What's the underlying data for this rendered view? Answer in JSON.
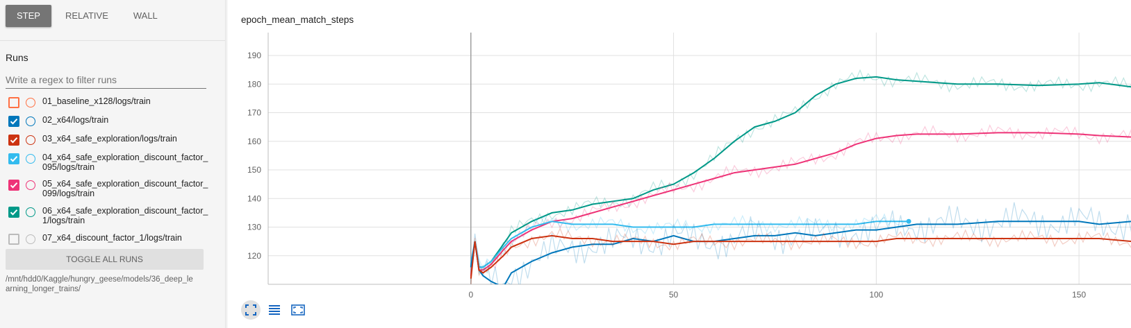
{
  "xaxis_buttons": [
    {
      "label": "STEP",
      "active": true
    },
    {
      "label": "RELATIVE",
      "active": false
    },
    {
      "label": "WALL",
      "active": false
    }
  ],
  "runs_title": "Runs",
  "filter_placeholder": "Write a regex to filter runs",
  "runs": [
    {
      "label": "01_baseline_x128/logs/train",
      "checked": false,
      "color": "#ff7043"
    },
    {
      "label": "02_x64/logs/train",
      "checked": true,
      "color": "#0077bb"
    },
    {
      "label": "03_x64_safe_exploration/logs/train",
      "checked": true,
      "color": "#cc3311"
    },
    {
      "label": "04_x64_safe_exploration_discount_factor_095/logs/train",
      "checked": true,
      "color": "#33bbee"
    },
    {
      "label": "05_x64_safe_exploration_discount_factor_099/logs/train",
      "checked": true,
      "color": "#ee3377"
    },
    {
      "label": "06_x64_safe_exploration_discount_factor_1/logs/train",
      "checked": true,
      "color": "#009988"
    },
    {
      "label": "07_x64_discount_factor_1/logs/train",
      "checked": false,
      "color": "#bbbbbb"
    }
  ],
  "toggle_all_label": "TOGGLE ALL RUNS",
  "logdir": "/mnt/hdd0/Kaggle/hungry_geese/models/36_deep_learning_longer_trains/",
  "card_title": "epoch_mean_match_steps",
  "icons": [
    "fit-domain-icon",
    "data-table-icon",
    "fullscreen-icon"
  ],
  "chart_data": {
    "type": "line",
    "title": "epoch_mean_match_steps",
    "xlabel": "",
    "ylabel": "",
    "xlim": [
      -50,
      163
    ],
    "ylim": [
      110,
      198
    ],
    "xticks": [
      0,
      50,
      100,
      150
    ],
    "yticks": [
      120,
      130,
      140,
      150,
      160,
      170,
      180,
      190
    ],
    "grid": true,
    "series": [
      {
        "color": "#009988",
        "x": [
          0,
          1,
          2,
          3,
          5,
          8,
          10,
          15,
          20,
          25,
          30,
          35,
          40,
          45,
          50,
          55,
          60,
          65,
          70,
          75,
          80,
          85,
          90,
          95,
          100,
          105,
          110,
          115,
          120,
          130,
          140,
          150,
          155,
          163
        ],
        "y": [
          116,
          125,
          116,
          116,
          118,
          124,
          128,
          132,
          135,
          136,
          138,
          139,
          140,
          143,
          145,
          149,
          154,
          160,
          165,
          167,
          170,
          176,
          180,
          182,
          182.5,
          181.5,
          181,
          180.5,
          180,
          180,
          179.5,
          180,
          180.5,
          179
        ]
      },
      {
        "color": "#ee3377",
        "x": [
          0,
          1,
          2,
          3,
          5,
          8,
          10,
          15,
          20,
          25,
          30,
          35,
          40,
          45,
          50,
          55,
          60,
          65,
          70,
          75,
          80,
          85,
          90,
          95,
          100,
          105,
          110,
          115,
          120,
          130,
          140,
          150,
          155,
          163
        ],
        "y": [
          113,
          125,
          115,
          115,
          117,
          122,
          125,
          129,
          132,
          133,
          135,
          137,
          139,
          141,
          143,
          145,
          147,
          149,
          150,
          151,
          152,
          154,
          156,
          159,
          161,
          162,
          162.5,
          162.5,
          162.5,
          163,
          163,
          162.5,
          162,
          161.5
        ]
      },
      {
        "color": "#33bbee",
        "x": [
          0,
          1,
          2,
          3,
          5,
          8,
          10,
          15,
          20,
          25,
          30,
          35,
          40,
          45,
          50,
          55,
          60,
          65,
          70,
          75,
          80,
          85,
          90,
          95,
          100,
          105,
          108
        ],
        "y": [
          117,
          125,
          116,
          116,
          118,
          123,
          126,
          130,
          132,
          131,
          131,
          131,
          130,
          130,
          130,
          130,
          131,
          131,
          131,
          131,
          131,
          131,
          131,
          131,
          132,
          132,
          132
        ]
      },
      {
        "color": "#0077bb",
        "x": [
          0,
          1,
          2,
          3,
          5,
          8,
          10,
          15,
          20,
          25,
          30,
          35,
          40,
          45,
          50,
          55,
          60,
          65,
          70,
          75,
          80,
          85,
          90,
          95,
          100,
          105,
          110,
          115,
          120,
          130,
          140,
          150,
          155,
          163
        ],
        "y": [
          116,
          125,
          115,
          113,
          111,
          109,
          114,
          118,
          121,
          123,
          124,
          124,
          126,
          125,
          127,
          125,
          125,
          126,
          127,
          127,
          128,
          127,
          128,
          129,
          129,
          130,
          131,
          131,
          131,
          132,
          132,
          132,
          131,
          132
        ]
      },
      {
        "color": "#cc3311",
        "x": [
          0,
          1,
          2,
          3,
          5,
          8,
          10,
          15,
          20,
          25,
          30,
          35,
          40,
          45,
          50,
          55,
          60,
          65,
          70,
          75,
          80,
          85,
          90,
          95,
          100,
          105,
          110,
          115,
          120,
          130,
          140,
          150,
          155,
          163
        ],
        "y": [
          112,
          125,
          115,
          114,
          116,
          120,
          123,
          126,
          127,
          126,
          126,
          125,
          125,
          125,
          124,
          125,
          125,
          125,
          125,
          125,
          125,
          125,
          125,
          125,
          125,
          126,
          126,
          126,
          126,
          126,
          126,
          126,
          126,
          125
        ]
      }
    ]
  }
}
